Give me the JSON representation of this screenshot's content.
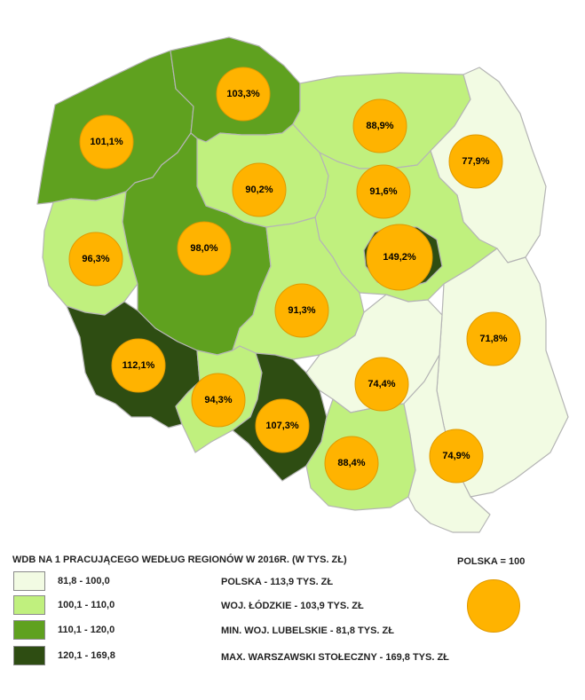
{
  "map": {
    "legend_title": "WDB NA 1 PRACUJĄCEGO WEDŁUG REGIONÓW W 2016R. (W TYS. ZŁ)",
    "reference_label": "POLSKA = 100",
    "classes": [
      {
        "range": "81,8 - 100,0",
        "color": "#F2FBE3"
      },
      {
        "range": "100,1 - 110,0",
        "color": "#C0F07E"
      },
      {
        "range": "110,1 - 120,0",
        "color": "#5FA11F"
      },
      {
        "range": "120,1 - 169,8",
        "color": "#2E4D12"
      }
    ],
    "stats": [
      "POLSKA - 113,9 TYS. ZŁ",
      "WOJ. ŁÓDZKIE - 103,9 TYS. ZŁ",
      "MIN. WOJ. LUBELSKIE - 81,8 TYS. ZŁ",
      "MAX. WARSZAWSKI STOŁECZNY - 169,8 TYS. ZŁ"
    ],
    "regions": [
      {
        "id": "zachodniopomorskie",
        "value": 101.1,
        "label": "101,1%",
        "class": 2
      },
      {
        "id": "pomorskie",
        "value": 103.3,
        "label": "103,3%",
        "class": 2
      },
      {
        "id": "warminsko-mazurskie",
        "value": 88.9,
        "label": "88,9%",
        "class": 1
      },
      {
        "id": "podlaskie",
        "value": 77.9,
        "label": "77,9%",
        "class": 0
      },
      {
        "id": "kujawsko-pomorskie",
        "value": 90.2,
        "label": "90,2%",
        "class": 1
      },
      {
        "id": "mazowiecki-regionalny",
        "value": 91.6,
        "label": "91,6%",
        "class": 1
      },
      {
        "id": "warszawski-stoleczny",
        "value": 149.2,
        "label": "149,2%",
        "class": 3
      },
      {
        "id": "lubuskie",
        "value": 96.3,
        "label": "96,3%",
        "class": 1
      },
      {
        "id": "wielkopolskie",
        "value": 98.0,
        "label": "98,0%",
        "class": 2
      },
      {
        "id": "lodzkie",
        "value": 91.3,
        "label": "91,3%",
        "class": 1
      },
      {
        "id": "lubelskie",
        "value": 71.8,
        "label": "71,8%",
        "class": 0
      },
      {
        "id": "dolnoslaskie",
        "value": 112.1,
        "label": "112,1%",
        "class": 3
      },
      {
        "id": "opolskie",
        "value": 94.3,
        "label": "94,3%",
        "class": 1
      },
      {
        "id": "slaskie",
        "value": 107.3,
        "label": "107,3%",
        "class": 3
      },
      {
        "id": "swietokrzyskie",
        "value": 74.4,
        "label": "74,4%",
        "class": 0
      },
      {
        "id": "malopolskie",
        "value": 88.4,
        "label": "88,4%",
        "class": 1
      },
      {
        "id": "podkarpackie",
        "value": 74.9,
        "label": "74,9%",
        "class": 0
      }
    ]
  }
}
